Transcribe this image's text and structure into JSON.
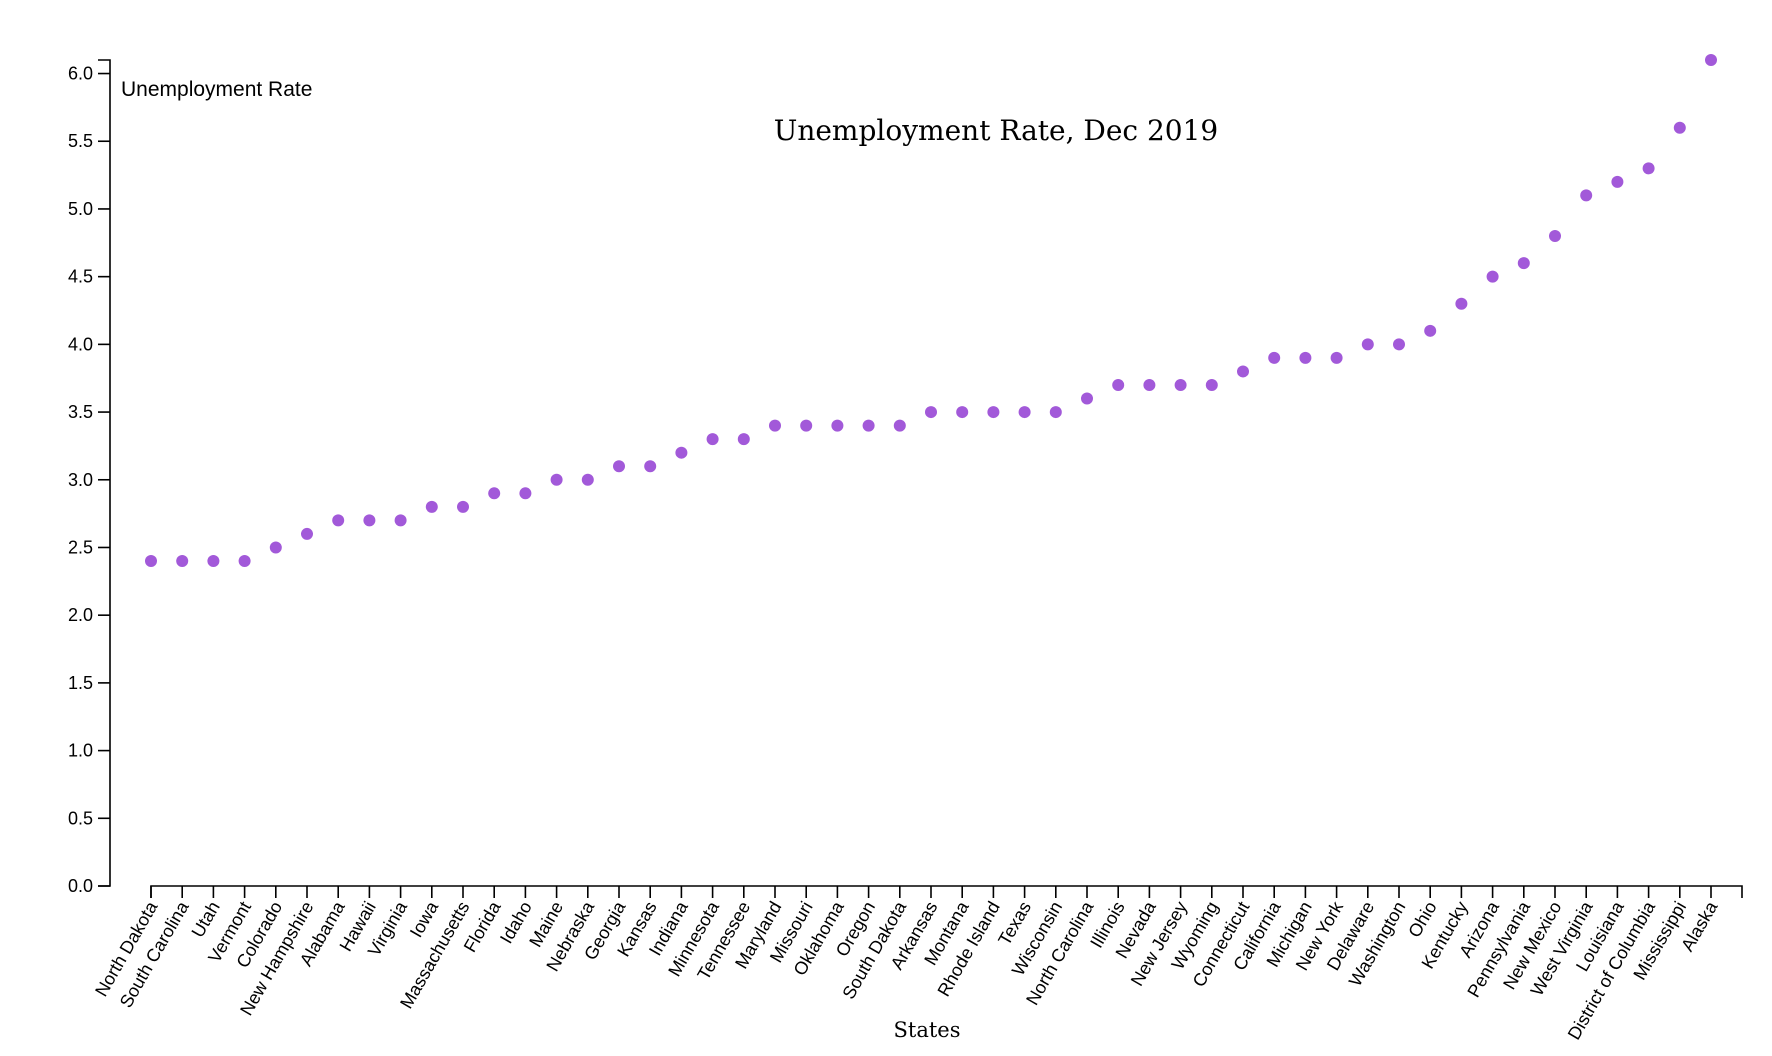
{
  "chart_data": {
    "type": "scatter",
    "title": "Unemployment Rate, Dec 2019",
    "xlabel": "States",
    "ylabel": "Unemployment Rate",
    "ylim": [
      0,
      6.1
    ],
    "yticks": [
      "0.0",
      "0.5",
      "1.0",
      "1.5",
      "2.0",
      "2.5",
      "3.0",
      "3.5",
      "4.0",
      "4.5",
      "5.0",
      "5.5",
      "6.0"
    ],
    "grid": false,
    "point_color": "#a259d9",
    "categories": [
      "North Dakota",
      "South Carolina",
      "Utah",
      "Vermont",
      "Colorado",
      "New Hampshire",
      "Alabama",
      "Hawaii",
      "Virginia",
      "Iowa",
      "Massachusetts",
      "Florida",
      "Idaho",
      "Maine",
      "Nebraska",
      "Georgia",
      "Kansas",
      "Indiana",
      "Minnesota",
      "Tennessee",
      "Maryland",
      "Missouri",
      "Oklahoma",
      "Oregon",
      "South Dakota",
      "Arkansas",
      "Montana",
      "Rhode Island",
      "Texas",
      "Wisconsin",
      "North Carolina",
      "Illinois",
      "Nevada",
      "New Jersey",
      "Wyoming",
      "Connecticut",
      "California",
      "Michigan",
      "New York",
      "Delaware",
      "Washington",
      "Ohio",
      "Kentucky",
      "Arizona",
      "Pennsylvania",
      "New Mexico",
      "West Virginia",
      "Louisiana",
      "District of Columbia",
      "Mississippi",
      "Alaska"
    ],
    "values": [
      2.4,
      2.4,
      2.4,
      2.4,
      2.5,
      2.6,
      2.7,
      2.7,
      2.7,
      2.8,
      2.8,
      2.9,
      2.9,
      3.0,
      3.0,
      3.1,
      3.1,
      3.2,
      3.3,
      3.3,
      3.4,
      3.4,
      3.4,
      3.4,
      3.4,
      3.5,
      3.5,
      3.5,
      3.5,
      3.5,
      3.6,
      3.7,
      3.7,
      3.7,
      3.7,
      3.8,
      3.9,
      3.9,
      3.9,
      4.0,
      4.0,
      4.1,
      4.3,
      4.5,
      4.6,
      4.8,
      5.1,
      5.2,
      5.3,
      5.6,
      6.1
    ]
  }
}
